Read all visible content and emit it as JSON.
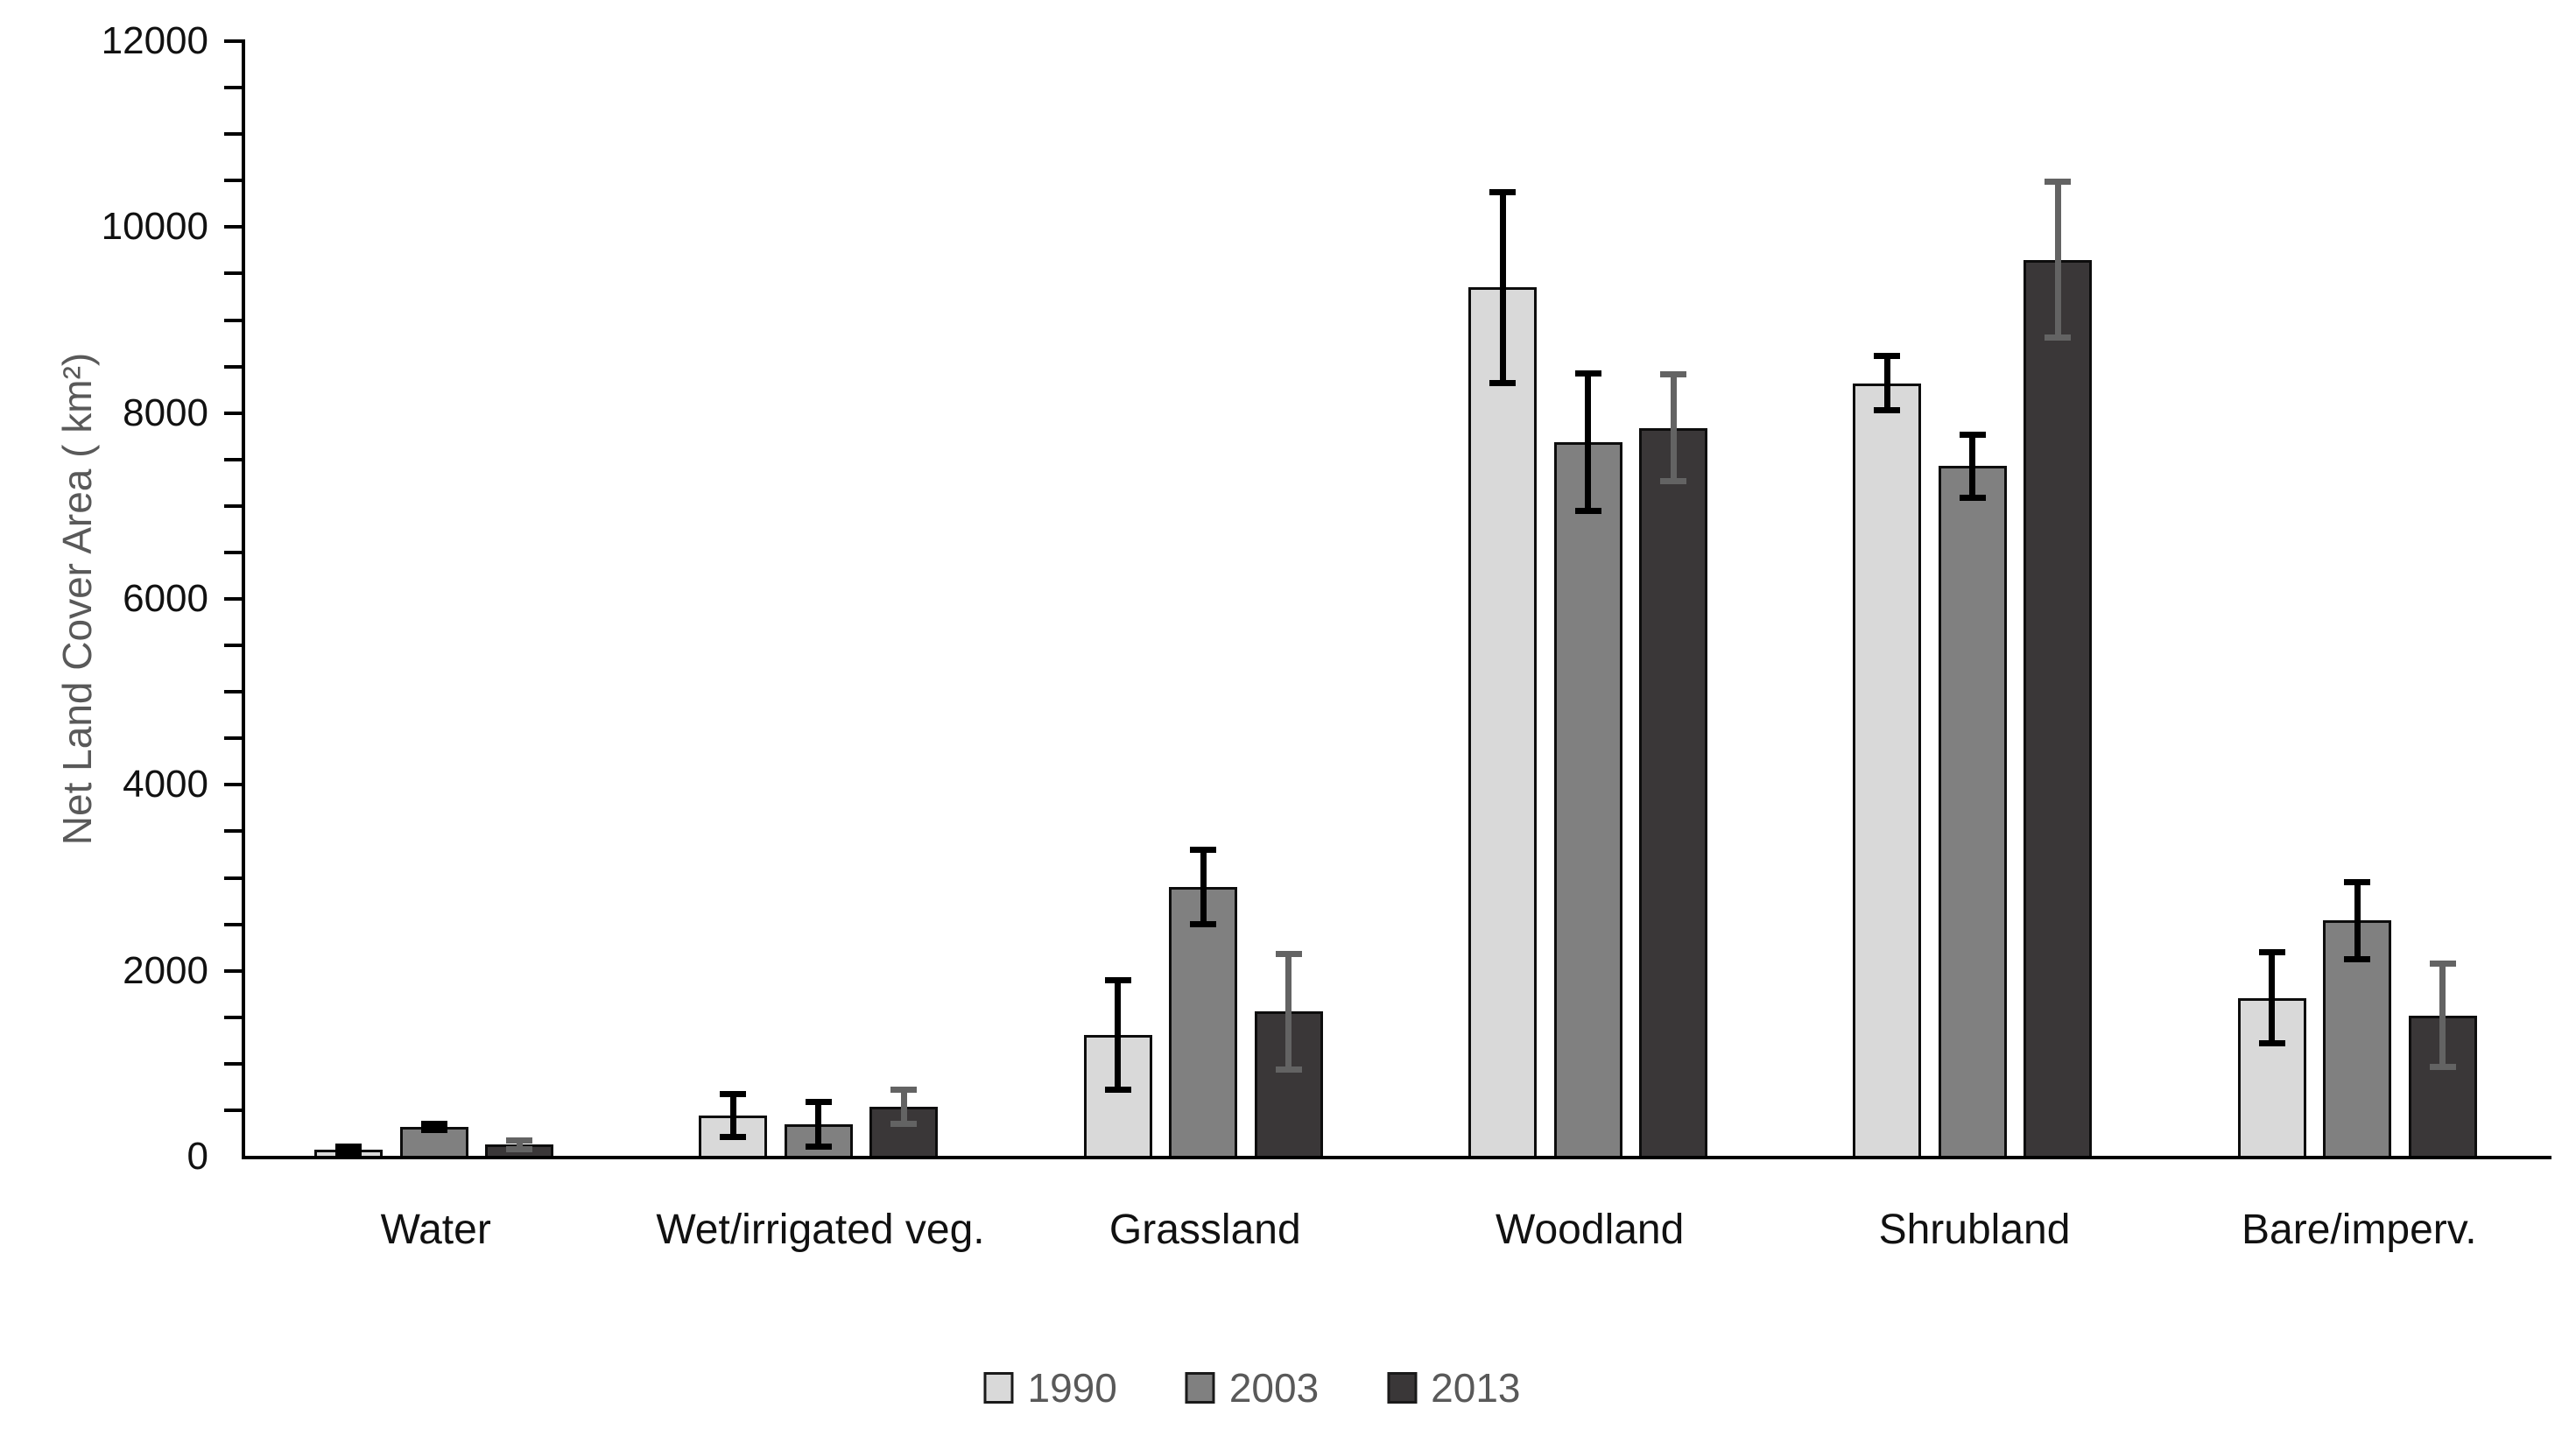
{
  "chart_data": {
    "type": "bar",
    "title": "",
    "xlabel": "",
    "ylabel": "Net Land Cover Area ( km²)",
    "ylim": [
      0,
      12000
    ],
    "yticks": [
      0,
      2000,
      4000,
      6000,
      8000,
      10000,
      12000
    ],
    "minor_tick_interval": 500,
    "grid": false,
    "legend_position": "bottom",
    "categories": [
      "Water",
      "Wet/irrigated veg.",
      "Grassland",
      "Woodland",
      "Shrubland",
      "Bare/imperv."
    ],
    "series": [
      {
        "name": "1990",
        "color": "#d9d9d9",
        "error_color": "#000000",
        "values": [
          75,
          445,
          1310,
          9350,
          8320,
          1710
        ],
        "errors": [
          35,
          230,
          590,
          1030,
          290,
          490
        ]
      },
      {
        "name": "2003",
        "color": "#808080",
        "error_color": "#000000",
        "values": [
          320,
          350,
          2900,
          7690,
          7430,
          2540
        ],
        "errors": [
          35,
          240,
          400,
          740,
          340,
          415
        ]
      },
      {
        "name": "2013",
        "color": "#3a3738",
        "error_color": "#636363",
        "values": [
          130,
          540,
          1560,
          7840,
          9650,
          1520
        ],
        "errors": [
          45,
          185,
          620,
          575,
          840,
          555
        ]
      }
    ]
  }
}
